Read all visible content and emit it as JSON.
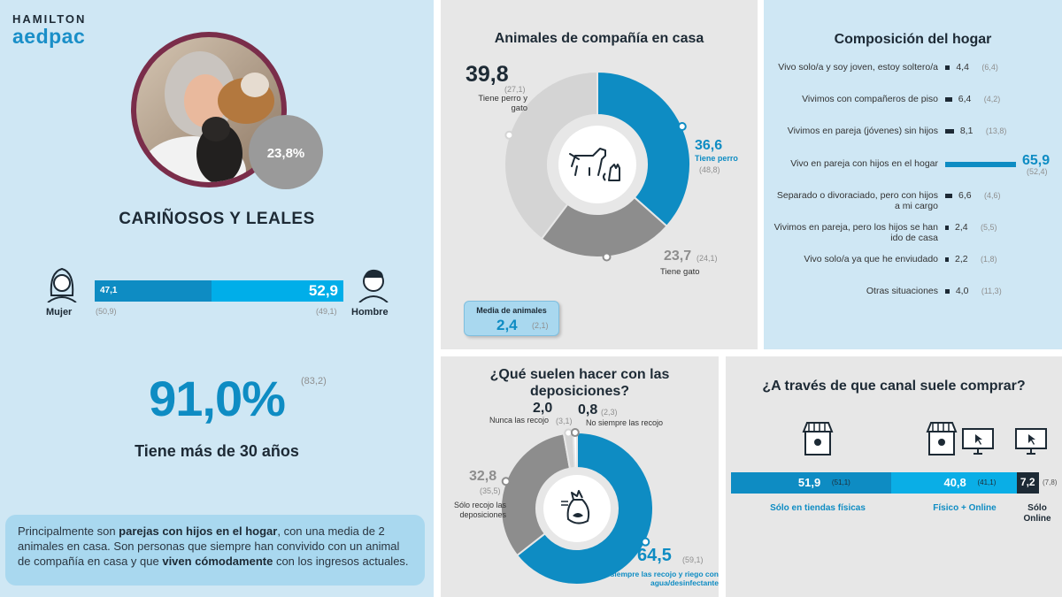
{
  "brand": {
    "line1": "HAMILTON",
    "line2": "aedpac"
  },
  "left": {
    "photo_badge": "23,8%",
    "heading": "CARIÑOSOS Y LEALES",
    "gender": {
      "women_label": "Mujer",
      "men_label": "Hombre",
      "women_value": "47,1",
      "men_value": "52,9",
      "women_ref": "(50,9)",
      "men_ref": "(49,1)"
    },
    "age": {
      "value": "91,0%",
      "ref": "(83,2)",
      "caption": "Tiene más de 30 años"
    },
    "summary": {
      "p1": "Principalmente son ",
      "b1": "parejas con hijos en el hogar",
      "p2": ", con una media de 2 animales en casa. Son personas que siempre han convivido con un animal de compañía en casa y que ",
      "b2": "viven cómodamente",
      "p3": " con los ingresos actuales."
    }
  },
  "colors": {
    "accent_blue": "#0e8cc3",
    "dark": "#1d2a35",
    "gray_mid": "#8d8d8d",
    "gray_light": "#d4d4d4",
    "panel_blue": "#cfe7f4",
    "panel_gray": "#e7e7e7"
  },
  "chart_data": [
    {
      "type": "pie",
      "title": "Animales de compañía en casa",
      "categories": [
        "Tiene perro",
        "Tiene gato",
        "Tiene perro y gato"
      ],
      "values": [
        36.6,
        23.7,
        39.8
      ],
      "value_labels": [
        "36,6",
        "23,7",
        "39,8"
      ],
      "reference_labels": [
        "(48,8)",
        "(24,1)",
        "(27,1)"
      ],
      "colors": [
        "#0e8cc3",
        "#8d8d8d",
        "#d4d4d4"
      ],
      "media": {
        "label": "Media de animales",
        "value": "2,4",
        "ref": "(2,1)"
      }
    },
    {
      "type": "bar",
      "title": "Composición del hogar",
      "categories": [
        "Vivo solo/a y soy joven, estoy soltero/a",
        "Vivimos con compañeros de piso",
        "Vivimos en pareja (jóvenes) sin hijos",
        "Vivo en pareja con hijos en el hogar",
        "Separado o divoraciado, pero con hijos a mi cargo",
        "Vivimos en pareja, pero los hijos se han ido de casa",
        "Vivo solo/a ya que he enviudado",
        "Otras situaciones"
      ],
      "values": [
        4.4,
        6.4,
        8.1,
        65.9,
        6.6,
        2.4,
        2.2,
        4.0
      ],
      "value_labels": [
        "4,4",
        "6,4",
        "8,1",
        "65,9",
        "6,6",
        "2,4",
        "2,2",
        "4,0"
      ],
      "reference_labels": [
        "(6,4)",
        "(4,2)",
        "(13,8)",
        "(52,4)",
        "(4,6)",
        "(5,5)",
        "(1,8)",
        "(11,3)"
      ],
      "highlight_index": 3
    },
    {
      "type": "pie",
      "title": "¿Qué suelen hacer con las deposiciones?",
      "categories": [
        "siempre las recojo y riego con agua/desinfectante",
        "Sólo recojo las deposiciones",
        "Nunca las recojo",
        "No siempre las recojo"
      ],
      "values": [
        64.5,
        32.8,
        2.0,
        0.8
      ],
      "value_labels": [
        "64,5",
        "32,8",
        "2,0",
        "0,8"
      ],
      "reference_labels": [
        "(59,1)",
        "(35,5)",
        "(3,1)",
        "(2,3)"
      ],
      "colors": [
        "#0e8cc3",
        "#8d8d8d",
        "#d4d4d4",
        "#ffffff"
      ]
    },
    {
      "type": "bar",
      "title": "¿A través de que canal suele comprar?",
      "categories": [
        "Sólo en tiendas físicas",
        "Físico + Online",
        "Sólo Online"
      ],
      "values": [
        51.9,
        40.8,
        7.2
      ],
      "value_labels": [
        "51,9",
        "40,8",
        "7,2"
      ],
      "reference_labels": [
        "(51,1)",
        "(41,1)",
        "(7,8)"
      ],
      "colors": [
        "#0e8cc3",
        "#0aaee6",
        "#1d2a35"
      ]
    }
  ]
}
